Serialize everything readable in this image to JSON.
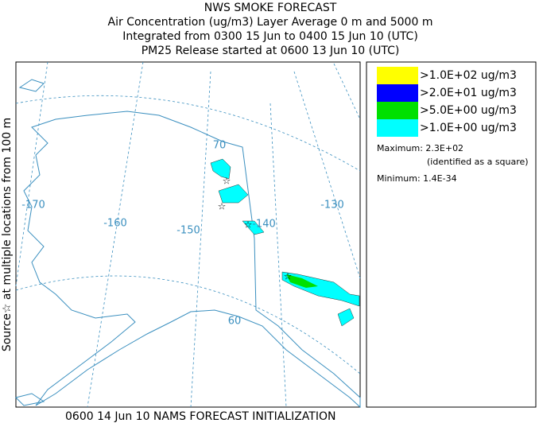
{
  "header": {
    "lines": [
      "NWS SMOKE FORECAST",
      "Air Concentration (ug/m3) Layer Average    0 m and  5000 m",
      "Integrated from 0300 15 Jun to 0400 15 Jun 10 (UTC)",
      "PM25 Release started at 0600 13 Jun 10 (UTC)"
    ]
  },
  "side_label": "Source☆ at multiple locations  from   100 m",
  "footer": "0600 14 Jun 10 NAMS FORECAST INITIALIZATION",
  "legend": {
    "items": [
      {
        "label": ">1.0E+02 ug/m3",
        "color": "#ffff00"
      },
      {
        "label": ">2.0E+01 ug/m3",
        "color": "#0000ff"
      },
      {
        "label": ">5.0E+00 ug/m3",
        "color": "#00e000"
      },
      {
        "label": ">1.0E+00 ug/m3",
        "color": "#00ffff"
      }
    ],
    "maximum": "Maximum: 2.3E+02",
    "maximum_note": "(identified as a square)",
    "minimum": "Minimum: 1.4E-34"
  },
  "map": {
    "labels": [
      "70",
      "-170",
      "-160",
      "-150",
      "-140",
      "-130",
      "60"
    ]
  }
}
